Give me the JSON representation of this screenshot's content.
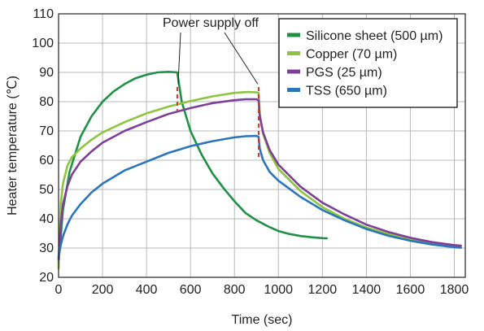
{
  "chart_data": {
    "type": "line",
    "title": "",
    "xlabel": "Time (sec)",
    "ylabel": "Heater temperature (℃)",
    "xlim": [
      0,
      1850
    ],
    "ylim": [
      20,
      110
    ],
    "xticks": [
      0,
      200,
      400,
      600,
      800,
      1000,
      1200,
      1400,
      1600,
      1800
    ],
    "yticks": [
      20,
      30,
      40,
      50,
      60,
      70,
      80,
      90,
      100,
      110
    ],
    "grid": true,
    "legend_position": "top-right",
    "annotation": {
      "text": "Power supply off",
      "markers_x": [
        540,
        910
      ]
    },
    "colors": {
      "marker": "#e0302a",
      "grid": "#b8b8b8"
    },
    "series": [
      {
        "name": "Silicone sheet (500 µm)",
        "color": "#1e9146",
        "x": [
          0,
          20,
          50,
          100,
          150,
          200,
          250,
          300,
          350,
          400,
          450,
          500,
          540,
          560,
          600,
          650,
          700,
          750,
          800,
          850,
          900,
          950,
          1000,
          1050,
          1100,
          1150,
          1200,
          1220
        ],
        "y": [
          25,
          43,
          56,
          68,
          75,
          80,
          83.5,
          86,
          88,
          89.2,
          90,
          90.2,
          90,
          80,
          70,
          62,
          55.5,
          50.5,
          46,
          42,
          39.5,
          37.5,
          35.8,
          34.8,
          34.1,
          33.7,
          33.4,
          33.3
        ]
      },
      {
        "name": "Copper (70 µm)",
        "color": "#8dc540",
        "x": [
          0,
          10,
          20,
          40,
          60,
          100,
          150,
          200,
          300,
          400,
          500,
          600,
          700,
          800,
          860,
          900,
          910,
          915,
          930,
          960,
          1000,
          1100,
          1200,
          1300,
          1400,
          1500,
          1600,
          1700,
          1800,
          1830
        ],
        "y": [
          23,
          45,
          52,
          58,
          61,
          64,
          67,
          69.5,
          73,
          76,
          78.3,
          80.2,
          81.8,
          83,
          83.3,
          83.2,
          83,
          76,
          69,
          62.5,
          57,
          49.5,
          44,
          40,
          37,
          34.8,
          32.8,
          31.3,
          30.4,
          30.2
        ]
      },
      {
        "name": "PGS (25 µm)",
        "color": "#7e3f98",
        "x": [
          0,
          10,
          20,
          40,
          60,
          100,
          150,
          200,
          300,
          400,
          500,
          600,
          700,
          800,
          850,
          900,
          910,
          915,
          930,
          960,
          1000,
          1100,
          1200,
          1300,
          1400,
          1500,
          1600,
          1700,
          1800,
          1830
        ],
        "y": [
          26,
          38,
          45,
          51,
          55,
          59.5,
          63,
          66,
          70,
          73,
          75.8,
          77.8,
          79.5,
          80.5,
          80.8,
          80.8,
          80.5,
          75,
          69.5,
          63.5,
          58.5,
          51,
          45.5,
          41.5,
          38,
          35.5,
          33.5,
          32,
          31,
          30.8
        ]
      },
      {
        "name": "TSS (650 µm)",
        "color": "#2a75bb",
        "x": [
          0,
          10,
          20,
          40,
          60,
          100,
          150,
          200,
          300,
          400,
          500,
          600,
          700,
          800,
          850,
          900,
          910,
          915,
          930,
          960,
          1000,
          1100,
          1200,
          1300,
          1400,
          1500,
          1600,
          1700,
          1800,
          1830
        ],
        "y": [
          27,
          31,
          34,
          38,
          41,
          45,
          49,
          52,
          56.5,
          59.5,
          62.5,
          64.8,
          66.5,
          67.8,
          68.2,
          68.3,
          68,
          64,
          60,
          56,
          53,
          47.5,
          43,
          39.5,
          36.5,
          34.2,
          32.5,
          31.2,
          30.3,
          30.1
        ]
      }
    ]
  }
}
